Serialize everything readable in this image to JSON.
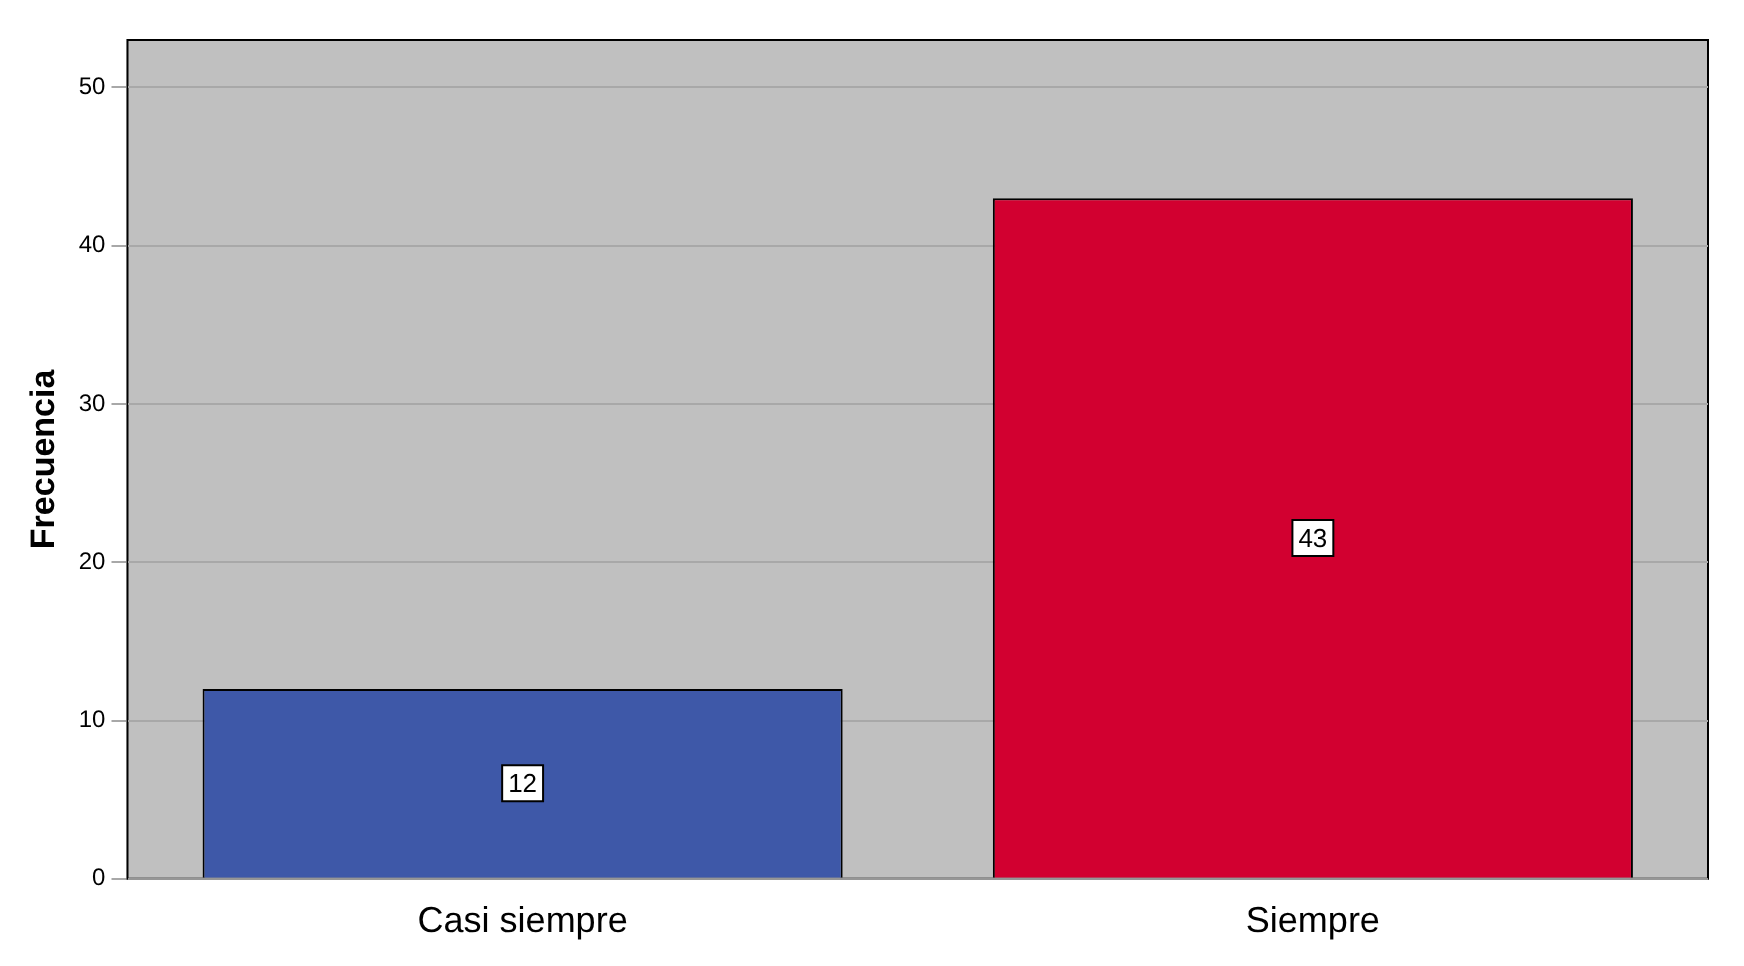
{
  "chart_data": {
    "type": "bar",
    "ylabel": "Frecuencia",
    "categories": [
      "Casi siempre",
      "Siempre"
    ],
    "values": [
      12,
      43
    ],
    "colors": [
      "#3e58a8",
      "#d20030"
    ],
    "ylim": [
      0,
      53
    ],
    "yticks": [
      0,
      10,
      20,
      30,
      40,
      50
    ],
    "grid": "y",
    "data_labels": true,
    "legend": false
  }
}
